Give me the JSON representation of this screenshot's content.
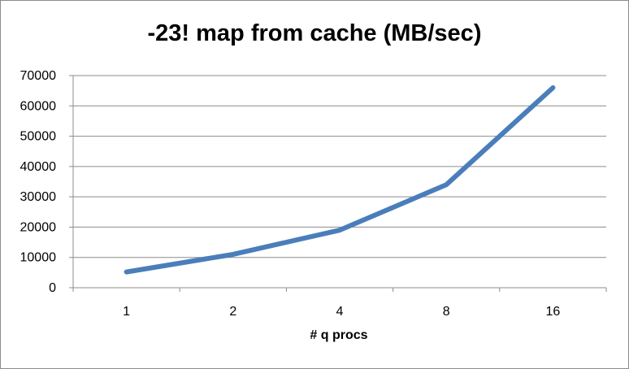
{
  "chart_data": {
    "type": "line",
    "title": "-23! map from cache (MB/sec)",
    "xlabel": "# q procs",
    "ylabel": "",
    "categories": [
      "1",
      "2",
      "4",
      "8",
      "16"
    ],
    "series": [
      {
        "values": [
          5200,
          11000,
          19000,
          34000,
          66000
        ],
        "color": "#4a7ebb"
      }
    ],
    "ylim": [
      0,
      70000
    ],
    "yticks": [
      "0",
      "10000",
      "20000",
      "30000",
      "40000",
      "50000",
      "60000",
      "70000"
    ],
    "grid": true,
    "legend": "none",
    "colors": {
      "line": "#4a7ebb",
      "grid": "#8c8c8c",
      "axis": "#8c8c8c"
    }
  }
}
